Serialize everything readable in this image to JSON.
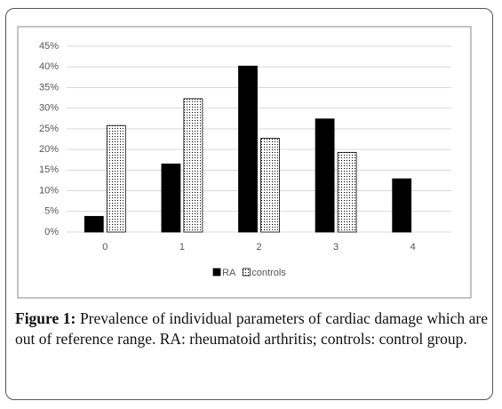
{
  "chart_data": {
    "type": "bar",
    "categories": [
      "0",
      "1",
      "2",
      "3",
      "4"
    ],
    "series": [
      {
        "name": "RA",
        "color": "#000000",
        "values": [
          3.8,
          16.5,
          40.2,
          27.4,
          12.9
        ]
      },
      {
        "name": "controls",
        "color": "#ffffff",
        "pattern": "dots",
        "values": [
          25.8,
          32.3,
          22.7,
          19.3,
          0
        ]
      }
    ],
    "ylim": [
      0,
      45
    ],
    "yticks": [
      {
        "value": 0,
        "label": "0%"
      },
      {
        "value": 5,
        "label": "5%"
      },
      {
        "value": 10,
        "label": "10%"
      },
      {
        "value": 15,
        "label": "15%"
      },
      {
        "value": 20,
        "label": "20%"
      },
      {
        "value": 25,
        "label": "25%"
      },
      {
        "value": 30,
        "label": "30%"
      },
      {
        "value": 35,
        "label": "35%"
      },
      {
        "value": 40,
        "label": "40%"
      },
      {
        "value": 45,
        "label": "45%"
      }
    ],
    "grid": true,
    "legend": "bottom",
    "caption_label": "Figure 1:",
    "caption": "Prevalence of individual parameters of cardiac damage which are out of reference range. RA: rheumatoid arthritis; controls: control group."
  }
}
